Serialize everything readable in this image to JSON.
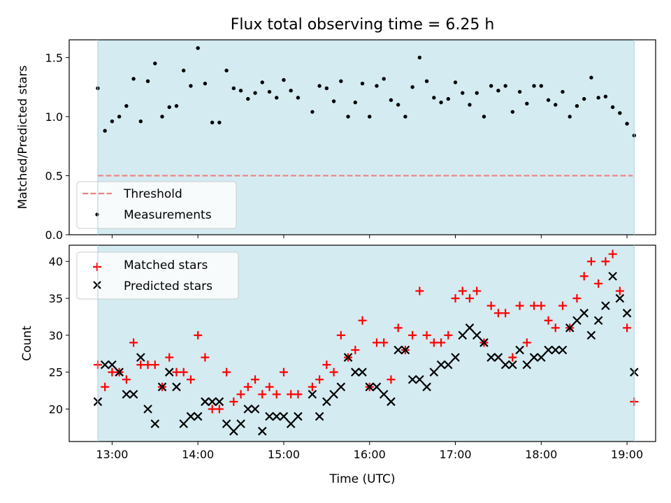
{
  "chart_data": [
    {
      "type": "scatter",
      "title": "Flux total observing time = 6.25 h",
      "xlabel": "",
      "ylabel": "Matched/Predicted stars",
      "xlim": [
        "12:30",
        "19:20"
      ],
      "ylim": [
        0,
        1.65
      ],
      "x_ticks": [
        "13:00",
        "14:00",
        "15:00",
        "16:00",
        "17:00",
        "18:00",
        "19:00"
      ],
      "y_ticks": [
        "0.0",
        "0.5",
        "1.0",
        "1.5"
      ],
      "y_tick_values": [
        0,
        0.5,
        1.0,
        1.5
      ],
      "shaded_span": [
        "12:50",
        "19:05"
      ],
      "shade_color": "#d4ebf1",
      "legend": {
        "location": "lower left",
        "entries": [
          "Threshold",
          "Measurements"
        ]
      },
      "series": [
        {
          "name": "Threshold",
          "style": "dashed-line",
          "color": "#f08080",
          "x": [
            "12:50",
            "19:04"
          ],
          "y": [
            0.5,
            0.5
          ]
        },
        {
          "name": "Measurements",
          "style": "dot",
          "color": "#000000",
          "x": [
            "12:50",
            "12:55",
            "13:00",
            "13:05",
            "13:10",
            "13:15",
            "13:20",
            "13:25",
            "13:30",
            "13:35",
            "13:40",
            "13:45",
            "13:50",
            "13:55",
            "14:00",
            "14:05",
            "14:10",
            "14:15",
            "14:20",
            "14:25",
            "14:30",
            "14:35",
            "14:40",
            "14:45",
            "14:50",
            "14:55",
            "15:00",
            "15:05",
            "15:10",
            "15:20",
            "15:25",
            "15:30",
            "15:35",
            "15:40",
            "15:45",
            "15:50",
            "15:55",
            "16:00",
            "16:05",
            "16:10",
            "16:15",
            "16:20",
            "16:25",
            "16:30",
            "16:35",
            "16:40",
            "16:45",
            "16:50",
            "16:55",
            "17:00",
            "17:05",
            "17:10",
            "17:15",
            "17:20",
            "17:25",
            "17:30",
            "17:35",
            "17:40",
            "17:45",
            "17:50",
            "17:55",
            "18:00",
            "18:05",
            "18:10",
            "18:15",
            "18:20",
            "18:25",
            "18:30",
            "18:35",
            "18:40",
            "18:45",
            "18:50",
            "18:55",
            "19:00",
            "19:05"
          ],
          "y": [
            1.24,
            0.88,
            0.96,
            1.0,
            1.09,
            1.32,
            0.96,
            1.3,
            1.45,
            1.0,
            1.08,
            1.09,
            1.39,
            1.26,
            1.58,
            1.28,
            0.95,
            0.95,
            1.39,
            1.24,
            1.22,
            1.15,
            1.2,
            1.29,
            1.21,
            1.16,
            1.31,
            1.22,
            1.16,
            1.04,
            1.26,
            1.24,
            1.13,
            1.3,
            1.0,
            1.12,
            1.28,
            1.0,
            1.26,
            1.32,
            1.14,
            1.1,
            1.0,
            1.25,
            1.5,
            1.3,
            1.16,
            1.12,
            1.15,
            1.29,
            1.2,
            1.1,
            1.2,
            1.0,
            1.26,
            1.22,
            1.26,
            1.04,
            1.21,
            1.11,
            1.26,
            1.26,
            1.14,
            1.1,
            1.21,
            1.0,
            1.09,
            1.15,
            1.33,
            1.16,
            1.17,
            1.08,
            1.03,
            0.94,
            0.84
          ]
        }
      ]
    },
    {
      "type": "scatter",
      "title": "",
      "xlabel": "Time (UTC)",
      "ylabel": "Count",
      "xlim": [
        "12:30",
        "19:20"
      ],
      "ylim": [
        15.6,
        42.2
      ],
      "x_ticks": [
        "13:00",
        "14:00",
        "15:00",
        "16:00",
        "17:00",
        "18:00",
        "19:00"
      ],
      "y_ticks": [
        "20",
        "25",
        "30",
        "35",
        "40"
      ],
      "y_tick_values": [
        20,
        25,
        30,
        35,
        40
      ],
      "shaded_span": [
        "12:50",
        "19:05"
      ],
      "shade_color": "#d4ebf1",
      "legend": {
        "location": "upper left",
        "entries": [
          "Matched stars",
          "Predicted stars"
        ]
      },
      "series": [
        {
          "name": "Matched stars",
          "marker": "plus",
          "color": "#ff0000",
          "x": [
            "12:50",
            "12:55",
            "13:00",
            "13:05",
            "13:10",
            "13:15",
            "13:20",
            "13:25",
            "13:30",
            "13:35",
            "13:40",
            "13:45",
            "13:50",
            "13:55",
            "14:00",
            "14:05",
            "14:10",
            "14:15",
            "14:20",
            "14:25",
            "14:30",
            "14:35",
            "14:40",
            "14:45",
            "14:50",
            "14:55",
            "15:00",
            "15:05",
            "15:10",
            "15:20",
            "15:25",
            "15:30",
            "15:35",
            "15:40",
            "15:45",
            "15:50",
            "15:55",
            "16:00",
            "16:05",
            "16:10",
            "16:15",
            "16:20",
            "16:25",
            "16:30",
            "16:35",
            "16:40",
            "16:45",
            "16:50",
            "16:55",
            "17:00",
            "17:05",
            "17:10",
            "17:15",
            "17:20",
            "17:25",
            "17:30",
            "17:35",
            "17:40",
            "17:45",
            "17:50",
            "17:55",
            "18:00",
            "18:05",
            "18:10",
            "18:15",
            "18:20",
            "18:25",
            "18:30",
            "18:35",
            "18:40",
            "18:45",
            "18:50",
            "18:55",
            "19:00",
            "19:05"
          ],
          "y": [
            26,
            23,
            25,
            25,
            24,
            29,
            26,
            26,
            26,
            23,
            27,
            25,
            25,
            24,
            30,
            27,
            20,
            20,
            25,
            21,
            22,
            23,
            24,
            22,
            23,
            22,
            25,
            22,
            22,
            23,
            24,
            26,
            25,
            30,
            27,
            28,
            32,
            23,
            29,
            29,
            24,
            31,
            28,
            30,
            36,
            30,
            29,
            29,
            30,
            35,
            36,
            35,
            36,
            29,
            34,
            33,
            33,
            27,
            34,
            29,
            34,
            34,
            32,
            31,
            34,
            31,
            35,
            38,
            40,
            37,
            40,
            41,
            36,
            31,
            21
          ]
        },
        {
          "name": "Predicted stars",
          "marker": "x",
          "color": "#000000",
          "x": [
            "12:50",
            "12:55",
            "13:00",
            "13:05",
            "13:10",
            "13:15",
            "13:20",
            "13:25",
            "13:30",
            "13:35",
            "13:40",
            "13:45",
            "13:50",
            "13:55",
            "14:00",
            "14:05",
            "14:10",
            "14:15",
            "14:20",
            "14:25",
            "14:30",
            "14:35",
            "14:40",
            "14:45",
            "14:50",
            "14:55",
            "15:00",
            "15:05",
            "15:10",
            "15:20",
            "15:25",
            "15:30",
            "15:35",
            "15:40",
            "15:45",
            "15:50",
            "15:55",
            "16:00",
            "16:05",
            "16:10",
            "16:15",
            "16:20",
            "16:25",
            "16:30",
            "16:35",
            "16:40",
            "16:45",
            "16:50",
            "16:55",
            "17:00",
            "17:05",
            "17:10",
            "17:15",
            "17:20",
            "17:25",
            "17:30",
            "17:35",
            "17:40",
            "17:45",
            "17:50",
            "17:55",
            "18:00",
            "18:05",
            "18:10",
            "18:15",
            "18:20",
            "18:25",
            "18:30",
            "18:35",
            "18:40",
            "18:45",
            "18:50",
            "18:55",
            "19:00",
            "19:05"
          ],
          "y": [
            21,
            26,
            26,
            25,
            22,
            22,
            27,
            20,
            18,
            23,
            25,
            23,
            18,
            19,
            19,
            21,
            21,
            21,
            18,
            17,
            18,
            20,
            20,
            17,
            19,
            19,
            19,
            18,
            19,
            22,
            19,
            21,
            22,
            23,
            27,
            25,
            25,
            23,
            23,
            22,
            21,
            28,
            28,
            24,
            24,
            23,
            25,
            26,
            26,
            27,
            30,
            31,
            30,
            29,
            27,
            27,
            26,
            26,
            28,
            26,
            27,
            27,
            28,
            28,
            28,
            31,
            32,
            33,
            30,
            32,
            34,
            38,
            35,
            33,
            25
          ]
        }
      ]
    }
  ]
}
